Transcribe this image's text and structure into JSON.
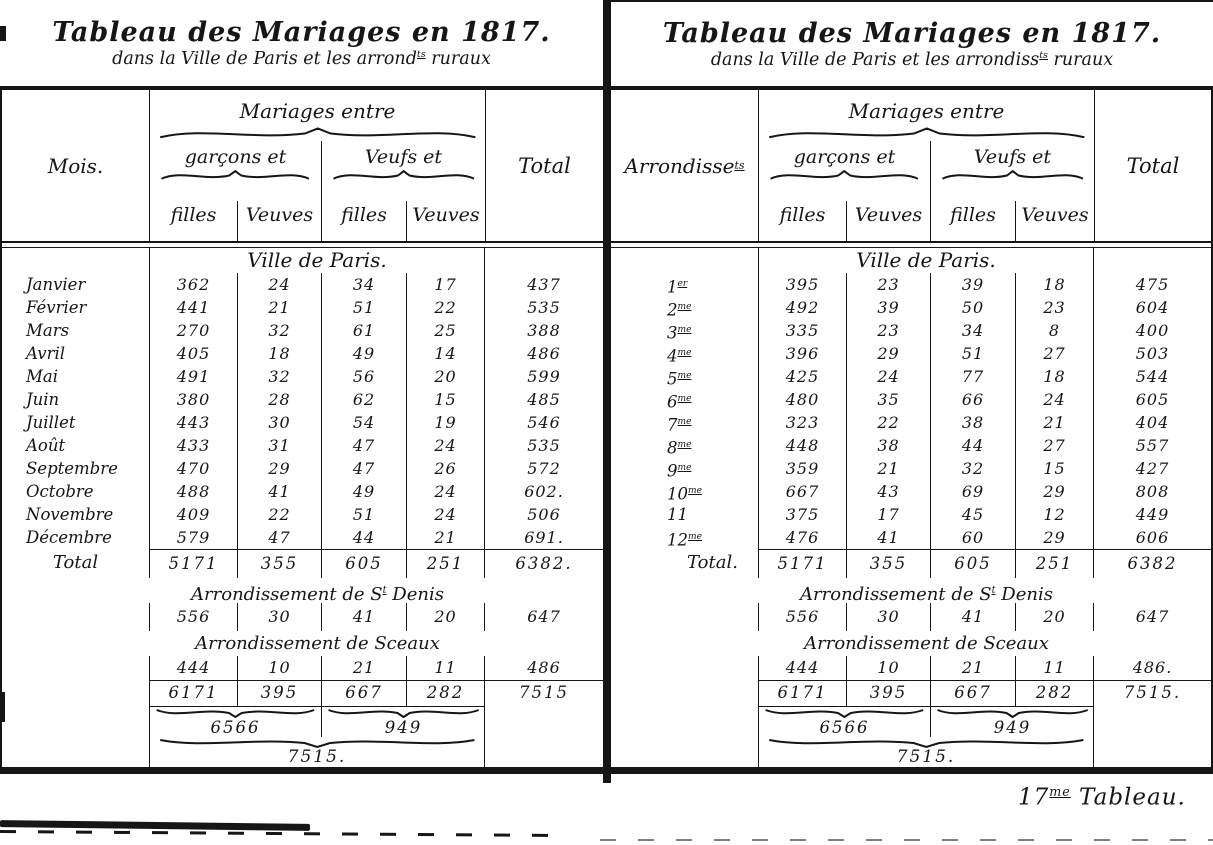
{
  "page": {
    "paper_color": "#ffffff",
    "ink_color": "#161616",
    "footnote": {
      "pre": "17",
      "sup": "me",
      "post": " Tableau."
    }
  },
  "tables": [
    {
      "title": {
        "line1": "Tableau des Mariages en 1817.",
        "line2": {
          "pre": "dans la Ville de Paris et les arrond",
          "sup": "ts",
          "post": " ruraux"
        }
      },
      "row_header": {
        "pre": "Mois.",
        "sup": "",
        "post": ""
      },
      "group_header": "Mariages entre",
      "subgroups": [
        "garçons et",
        "Veufs et"
      ],
      "col_headers": [
        "filles",
        "Veuves",
        "filles",
        "Veuves"
      ],
      "total_header": "Total",
      "city_section": {
        "label": "Ville de Paris.",
        "rows": [
          {
            "label": "Janvier",
            "sup": "",
            "values": [
              "362",
              "24",
              "34",
              "17",
              "437"
            ]
          },
          {
            "label": "Février",
            "sup": "",
            "values": [
              "441",
              "21",
              "51",
              "22",
              "535"
            ]
          },
          {
            "label": "Mars",
            "sup": "",
            "values": [
              "270",
              "32",
              "61",
              "25",
              "388"
            ]
          },
          {
            "label": "Avril",
            "sup": "",
            "values": [
              "405",
              "18",
              "49",
              "14",
              "486"
            ]
          },
          {
            "label": "Mai",
            "sup": "",
            "values": [
              "491",
              "32",
              "56",
              "20",
              "599"
            ]
          },
          {
            "label": "Juin",
            "sup": "",
            "values": [
              "380",
              "28",
              "62",
              "15",
              "485"
            ]
          },
          {
            "label": "Juillet",
            "sup": "",
            "values": [
              "443",
              "30",
              "54",
              "19",
              "546"
            ]
          },
          {
            "label": "Août",
            "sup": "",
            "values": [
              "433",
              "31",
              "47",
              "24",
              "535"
            ]
          },
          {
            "label": "Septembre",
            "sup": "",
            "values": [
              "470",
              "29",
              "47",
              "26",
              "572"
            ]
          },
          {
            "label": "Octobre",
            "sup": "",
            "values": [
              "488",
              "41",
              "49",
              "24",
              "602."
            ]
          },
          {
            "label": "Novembre",
            "sup": "",
            "values": [
              "409",
              "22",
              "51",
              "24",
              "506"
            ]
          },
          {
            "label": "Décembre",
            "sup": "",
            "values": [
              "579",
              "47",
              "44",
              "21",
              "691."
            ]
          }
        ],
        "total": {
          "label": "Total",
          "values": [
            "5171",
            "355",
            "605",
            "251",
            "6382."
          ]
        }
      },
      "rural_sections": [
        {
          "label": {
            "pre": "Arrondissement de S",
            "sup": "t",
            "post": " Denis"
          },
          "values": [
            "556",
            "30",
            "41",
            "20",
            "647"
          ]
        },
        {
          "label": {
            "pre": "Arrondissement de Sceaux",
            "sup": "",
            "post": ""
          },
          "values": [
            "444",
            "10",
            "21",
            "11",
            "486"
          ]
        }
      ],
      "grand_total": {
        "values": [
          "6171",
          "395",
          "667",
          "282"
        ],
        "total": "7515"
      },
      "combined": {
        "garcons_total": "6566",
        "veufs_total": "949",
        "overall_total": "7515."
      }
    },
    {
      "title": {
        "line1": "Tableau des Mariages en 1817.",
        "line2": {
          "pre": "dans la Ville de Paris et les arrondiss",
          "sup": "ts",
          "post": " ruraux"
        }
      },
      "row_header": {
        "pre": "Arrondisse",
        "sup": "ts",
        "post": ""
      },
      "group_header": "Mariages entre",
      "subgroups": [
        "garçons et",
        "Veufs et"
      ],
      "col_headers": [
        "filles",
        "Veuves",
        "filles",
        "Veuves"
      ],
      "total_header": "Total",
      "city_section": {
        "label": "Ville de Paris.",
        "rows": [
          {
            "label": "1",
            "sup": "er",
            "values": [
              "395",
              "23",
              "39",
              "18",
              "475"
            ]
          },
          {
            "label": "2",
            "sup": "me",
            "values": [
              "492",
              "39",
              "50",
              "23",
              "604"
            ]
          },
          {
            "label": "3",
            "sup": "me",
            "values": [
              "335",
              "23",
              "34",
              "8",
              "400"
            ]
          },
          {
            "label": "4",
            "sup": "me",
            "values": [
              "396",
              "29",
              "51",
              "27",
              "503"
            ]
          },
          {
            "label": "5",
            "sup": "me",
            "values": [
              "425",
              "24",
              "77",
              "18",
              "544"
            ]
          },
          {
            "label": "6",
            "sup": "me",
            "values": [
              "480",
              "35",
              "66",
              "24",
              "605"
            ]
          },
          {
            "label": "7",
            "sup": "me",
            "values": [
              "323",
              "22",
              "38",
              "21",
              "404"
            ]
          },
          {
            "label": "8",
            "sup": "me",
            "values": [
              "448",
              "38",
              "44",
              "27",
              "557"
            ]
          },
          {
            "label": "9",
            "sup": "me",
            "values": [
              "359",
              "21",
              "32",
              "15",
              "427"
            ]
          },
          {
            "label": "10",
            "sup": "me",
            "values": [
              "667",
              "43",
              "69",
              "29",
              "808"
            ]
          },
          {
            "label": "11",
            "sup": "",
            "values": [
              "375",
              "17",
              "45",
              "12",
              "449"
            ]
          },
          {
            "label": "12",
            "sup": "me",
            "values": [
              "476",
              "41",
              "60",
              "29",
              "606"
            ]
          }
        ],
        "total": {
          "label": "Total.",
          "values": [
            "5171",
            "355",
            "605",
            "251",
            "6382"
          ]
        }
      },
      "rural_sections": [
        {
          "label": {
            "pre": "Arrondissement de S",
            "sup": "t",
            "post": " Denis"
          },
          "values": [
            "556",
            "30",
            "41",
            "20",
            "647"
          ]
        },
        {
          "label": {
            "pre": "Arrondissement de Sceaux",
            "sup": "",
            "post": ""
          },
          "values": [
            "444",
            "10",
            "21",
            "11",
            "486."
          ]
        }
      ],
      "grand_total": {
        "values": [
          "6171",
          "395",
          "667",
          "282"
        ],
        "total": "7515."
      },
      "combined": {
        "garcons_total": "6566",
        "veufs_total": "949",
        "overall_total": "7515."
      }
    }
  ]
}
